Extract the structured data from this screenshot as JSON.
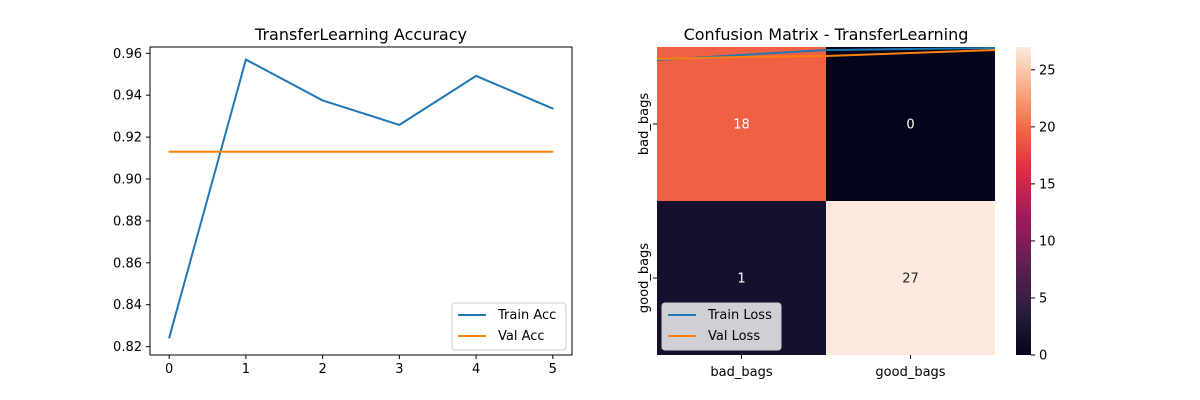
{
  "chart_data": [
    {
      "type": "line",
      "title": "TransferLearning Accuracy",
      "xlabel": "",
      "ylabel": "",
      "x": [
        0,
        1,
        2,
        3,
        4,
        5
      ],
      "xlim": [
        -0.25,
        5.25
      ],
      "ylim": [
        0.816,
        0.963
      ],
      "xticks": [
        0,
        1,
        2,
        3,
        4,
        5
      ],
      "yticks": [
        0.82,
        0.84,
        0.86,
        0.88,
        0.9,
        0.92,
        0.94,
        0.96
      ],
      "series": [
        {
          "name": "Train Acc",
          "color": "#1f77b4",
          "values": [
            0.8242,
            0.957,
            0.9375,
            0.9258,
            0.9492,
            0.9336
          ]
        },
        {
          "name": "Val Acc",
          "color": "#ff7f0e",
          "values": [
            0.913,
            0.913,
            0.913,
            0.913,
            0.913,
            0.913
          ]
        }
      ],
      "legend": "lower-right",
      "grid": false
    },
    {
      "type": "heatmap",
      "title": "Confusion Matrix - TransferLearning",
      "row_labels": [
        "bad_bags",
        "good_bags"
      ],
      "col_labels": [
        "bad_bags",
        "good_bags"
      ],
      "values": [
        [
          18,
          0
        ],
        [
          1,
          27
        ]
      ],
      "colorbar": {
        "min": 0,
        "max": 27,
        "ticks": [
          0,
          5,
          10,
          15,
          20,
          25
        ]
      },
      "cell_colors": [
        [
          "#f06043",
          "#03051a"
        ],
        [
          "#170f2e",
          "#fae9dc"
        ]
      ],
      "overlay_series": [
        {
          "name": "Train Loss",
          "color": "#1f77b4"
        },
        {
          "name": "Val Loss",
          "color": "#ff7f0e"
        }
      ],
      "legend": "lower-left"
    }
  ]
}
